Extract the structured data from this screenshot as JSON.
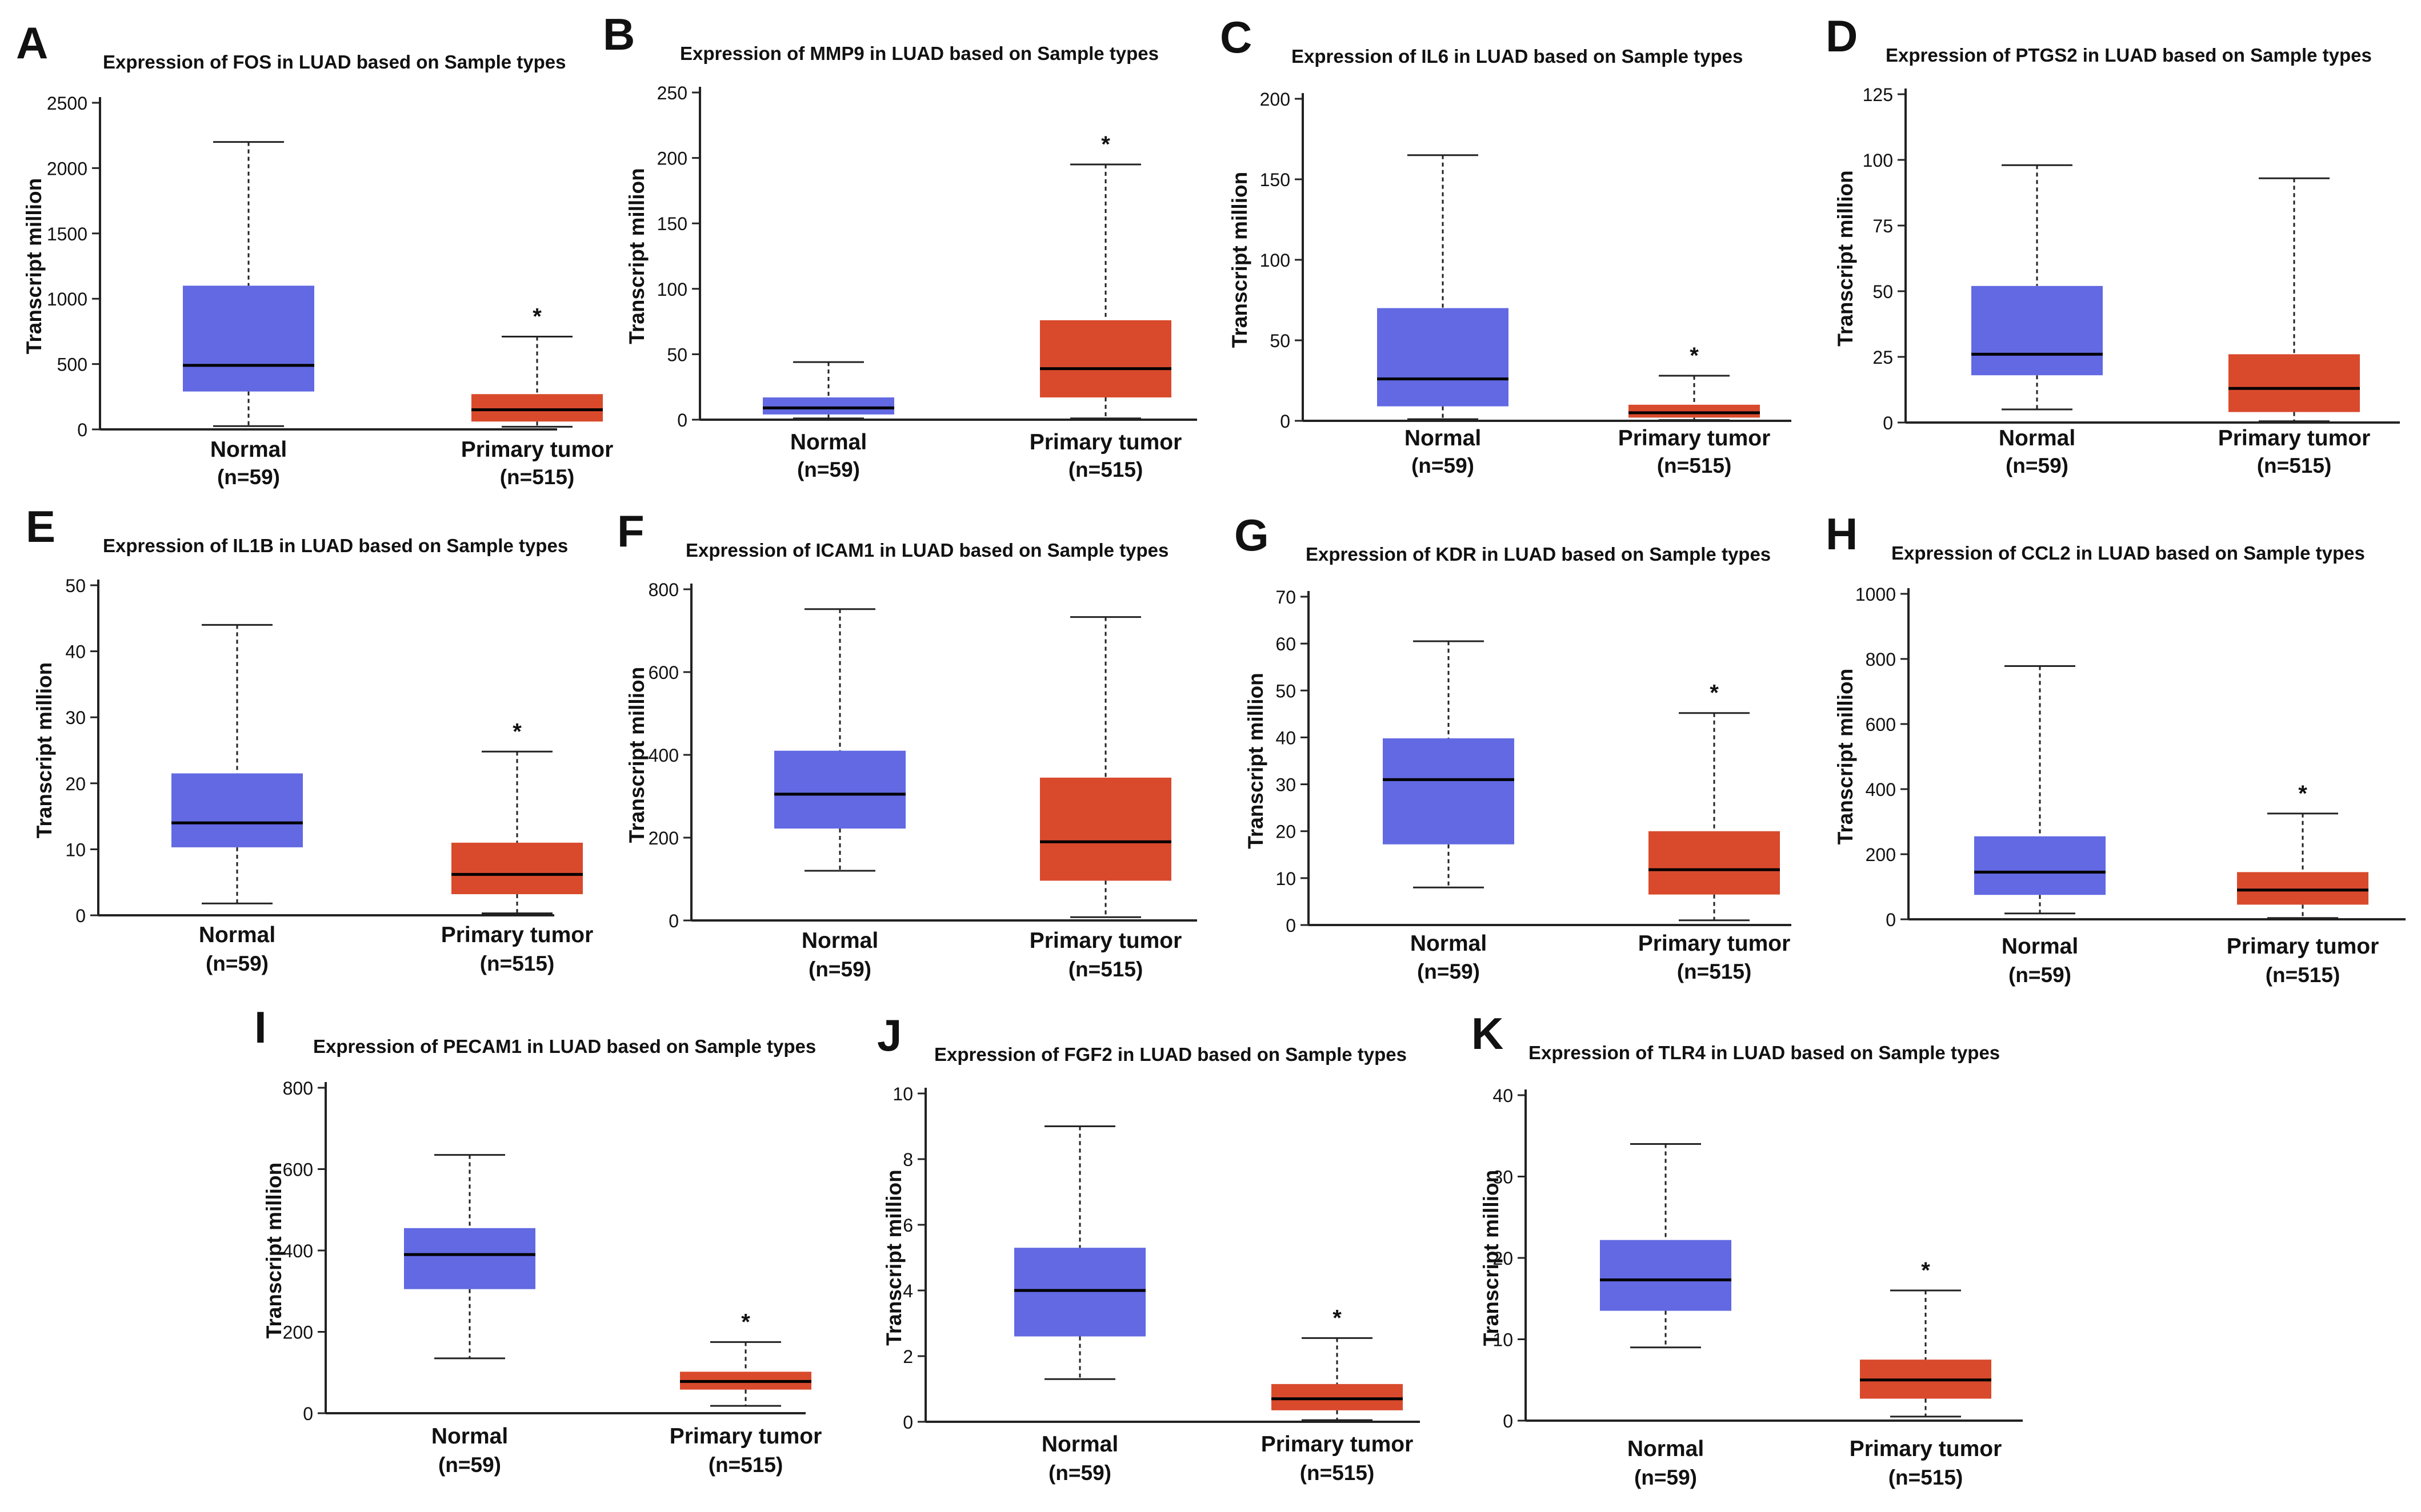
{
  "chart_data": [
    {
      "type": "boxplot",
      "panel": "A",
      "title": "Expression of FOS in LUAD based on Sample types",
      "xlabel": "",
      "ylabel": "Transcript million",
      "ylim": [
        0,
        2500
      ],
      "yticks": [
        0,
        500,
        1000,
        1500,
        2000,
        2500
      ],
      "categories": [
        "Normal",
        "Primary tumor"
      ],
      "category_counts": [
        "(n=59)",
        "(n=515)"
      ],
      "series": [
        {
          "name": "Normal",
          "color": "#6269e2",
          "min": 25,
          "q1": 290,
          "median": 490,
          "q3": 1100,
          "max": 2200,
          "significant": false
        },
        {
          "name": "Primary tumor",
          "color": "#d94a2c",
          "min": 20,
          "q1": 60,
          "median": 150,
          "q3": 270,
          "max": 710,
          "significant": true
        }
      ],
      "annotation": "*"
    },
    {
      "type": "boxplot",
      "panel": "B",
      "title": "Expression of MMP9 in LUAD based on Sample types",
      "xlabel": "",
      "ylabel": "Transcript million",
      "ylim": [
        0,
        250
      ],
      "yticks": [
        0,
        50,
        100,
        150,
        200,
        250
      ],
      "categories": [
        "Normal",
        "Primary tumor"
      ],
      "category_counts": [
        "(n=59)",
        "(n=515)"
      ],
      "series": [
        {
          "name": "Normal",
          "color": "#6269e2",
          "min": 1,
          "q1": 4,
          "median": 9,
          "q3": 17,
          "max": 44,
          "significant": false
        },
        {
          "name": "Primary tumor",
          "color": "#d94a2c",
          "min": 1,
          "q1": 17,
          "median": 39,
          "q3": 76,
          "max": 195,
          "significant": true
        }
      ],
      "annotation": "*"
    },
    {
      "type": "boxplot",
      "panel": "C",
      "title": "Expression of IL6 in LUAD based on Sample types",
      "xlabel": "",
      "ylabel": "Transcript million",
      "ylim": [
        0,
        200
      ],
      "yticks": [
        0,
        50,
        100,
        150,
        200
      ],
      "categories": [
        "Normal",
        "Primary tumor"
      ],
      "category_counts": [
        "(n=59)",
        "(n=515)"
      ],
      "series": [
        {
          "name": "Normal",
          "color": "#6269e2",
          "min": 1,
          "q1": 9,
          "median": 26,
          "q3": 70,
          "max": 165,
          "significant": false
        },
        {
          "name": "Primary tumor",
          "color": "#d94a2c",
          "min": 0.5,
          "q1": 2,
          "median": 5,
          "q3": 10,
          "max": 28,
          "significant": true
        }
      ],
      "annotation": "*"
    },
    {
      "type": "boxplot",
      "panel": "D",
      "title": "Expression of PTGS2 in LUAD based on Sample types",
      "xlabel": "",
      "ylabel": "Transcript million",
      "ylim": [
        0,
        125
      ],
      "yticks": [
        0,
        25,
        50,
        75,
        100,
        125
      ],
      "categories": [
        "Normal",
        "Primary tumor"
      ],
      "category_counts": [
        "(n=59)",
        "(n=515)"
      ],
      "series": [
        {
          "name": "Normal",
          "color": "#6269e2",
          "min": 5,
          "q1": 18,
          "median": 26,
          "q3": 52,
          "max": 98,
          "significant": false
        },
        {
          "name": "Primary tumor",
          "color": "#d94a2c",
          "min": 0.5,
          "q1": 4,
          "median": 13,
          "q3": 26,
          "max": 93,
          "significant": false
        }
      ],
      "annotation": ""
    },
    {
      "type": "boxplot",
      "panel": "E",
      "title": "Expression of IL1B in LUAD based on Sample types",
      "xlabel": "",
      "ylabel": "Transcript million",
      "ylim": [
        0,
        50
      ],
      "yticks": [
        0,
        10,
        20,
        30,
        40,
        50
      ],
      "categories": [
        "Normal",
        "Primary tumor"
      ],
      "category_counts": [
        "(n=59)",
        "(n=515)"
      ],
      "series": [
        {
          "name": "Normal",
          "color": "#6269e2",
          "min": 1.8,
          "q1": 10.3,
          "median": 14,
          "q3": 21.5,
          "max": 44,
          "significant": false
        },
        {
          "name": "Primary tumor",
          "color": "#d94a2c",
          "min": 0.3,
          "q1": 3.2,
          "median": 6.2,
          "q3": 11,
          "max": 24.8,
          "significant": true
        }
      ],
      "annotation": "*"
    },
    {
      "type": "boxplot",
      "panel": "F",
      "title": "Expression of ICAM1 in LUAD based on Sample types",
      "xlabel": "",
      "ylabel": "Transcript million",
      "ylim": [
        0,
        800
      ],
      "yticks": [
        0,
        200,
        400,
        600,
        800
      ],
      "categories": [
        "Normal",
        "Primary tumor"
      ],
      "category_counts": [
        "(n=59)",
        "(n=515)"
      ],
      "series": [
        {
          "name": "Normal",
          "color": "#6269e2",
          "min": 120,
          "q1": 222,
          "median": 305,
          "q3": 410,
          "max": 752,
          "significant": false
        },
        {
          "name": "Primary tumor",
          "color": "#d94a2c",
          "min": 8,
          "q1": 96,
          "median": 190,
          "q3": 345,
          "max": 733,
          "significant": false
        }
      ],
      "annotation": ""
    },
    {
      "type": "boxplot",
      "panel": "G",
      "title": "Expression of KDR in LUAD based on Sample types",
      "xlabel": "",
      "ylabel": "Transcript million",
      "ylim": [
        0,
        70
      ],
      "yticks": [
        0,
        10,
        20,
        30,
        40,
        50,
        60,
        70
      ],
      "categories": [
        "Normal",
        "Primary tumor"
      ],
      "category_counts": [
        "(n=59)",
        "(n=515)"
      ],
      "series": [
        {
          "name": "Normal",
          "color": "#6269e2",
          "min": 8,
          "q1": 17.2,
          "median": 31,
          "q3": 39.8,
          "max": 60.5,
          "significant": false
        },
        {
          "name": "Primary tumor",
          "color": "#d94a2c",
          "min": 1,
          "q1": 6.5,
          "median": 11.8,
          "q3": 20,
          "max": 45.2,
          "significant": true
        }
      ],
      "annotation": "*"
    },
    {
      "type": "boxplot",
      "panel": "H",
      "title": "Expression of CCL2 in LUAD based on Sample types",
      "xlabel": "",
      "ylabel": "Transcript million",
      "ylim": [
        0,
        1000
      ],
      "yticks": [
        0,
        200,
        400,
        600,
        800,
        1000
      ],
      "categories": [
        "Normal",
        "Primary tumor"
      ],
      "category_counts": [
        "(n=59)",
        "(n=515)"
      ],
      "series": [
        {
          "name": "Normal",
          "color": "#6269e2",
          "min": 18,
          "q1": 75,
          "median": 145,
          "q3": 255,
          "max": 778,
          "significant": false
        },
        {
          "name": "Primary tumor",
          "color": "#d94a2c",
          "min": 4,
          "q1": 45,
          "median": 90,
          "q3": 145,
          "max": 325,
          "significant": true
        }
      ],
      "annotation": "*"
    },
    {
      "type": "boxplot",
      "panel": "I",
      "title": "Expression of PECAM1 in LUAD based on Sample types",
      "xlabel": "",
      "ylabel": "Transcript million",
      "ylim": [
        0,
        800
      ],
      "yticks": [
        0,
        200,
        400,
        600,
        800
      ],
      "categories": [
        "Normal",
        "Primary tumor"
      ],
      "category_counts": [
        "(n=59)",
        "(n=515)"
      ],
      "series": [
        {
          "name": "Normal",
          "color": "#6269e2",
          "min": 135,
          "q1": 305,
          "median": 390,
          "q3": 455,
          "max": 635,
          "significant": false
        },
        {
          "name": "Primary tumor",
          "color": "#d94a2c",
          "min": 18,
          "q1": 58,
          "median": 78,
          "q3": 102,
          "max": 175,
          "significant": true
        }
      ],
      "annotation": "*"
    },
    {
      "type": "boxplot",
      "panel": "J",
      "title": "Expression of FGF2 in LUAD based on Sample types",
      "xlabel": "",
      "ylabel": "Transcript million",
      "ylim": [
        0,
        10
      ],
      "yticks": [
        0,
        2,
        4,
        6,
        8,
        10
      ],
      "categories": [
        "Normal",
        "Primary tumor"
      ],
      "category_counts": [
        "(n=59)",
        "(n=515)"
      ],
      "series": [
        {
          "name": "Normal",
          "color": "#6269e2",
          "min": 1.3,
          "q1": 2.6,
          "median": 4,
          "q3": 5.3,
          "max": 9,
          "significant": false
        },
        {
          "name": "Primary tumor",
          "color": "#d94a2c",
          "min": 0.05,
          "q1": 0.35,
          "median": 0.7,
          "q3": 1.15,
          "max": 2.55,
          "significant": true
        }
      ],
      "annotation": "*"
    },
    {
      "type": "boxplot",
      "panel": "K",
      "title": "Expression of TLR4 in LUAD based on Sample types",
      "xlabel": "",
      "ylabel": "Transcript million",
      "ylim": [
        0,
        40
      ],
      "yticks": [
        0,
        10,
        20,
        30,
        40
      ],
      "categories": [
        "Normal",
        "Primary tumor"
      ],
      "category_counts": [
        "(n=59)",
        "(n=515)"
      ],
      "series": [
        {
          "name": "Normal",
          "color": "#6269e2",
          "min": 9,
          "q1": 13.5,
          "median": 17.3,
          "q3": 22.2,
          "max": 34,
          "significant": false
        },
        {
          "name": "Primary tumor",
          "color": "#d94a2c",
          "min": 0.5,
          "q1": 2.7,
          "median": 5,
          "q3": 7.5,
          "max": 16,
          "significant": true
        }
      ],
      "annotation": "*"
    }
  ]
}
